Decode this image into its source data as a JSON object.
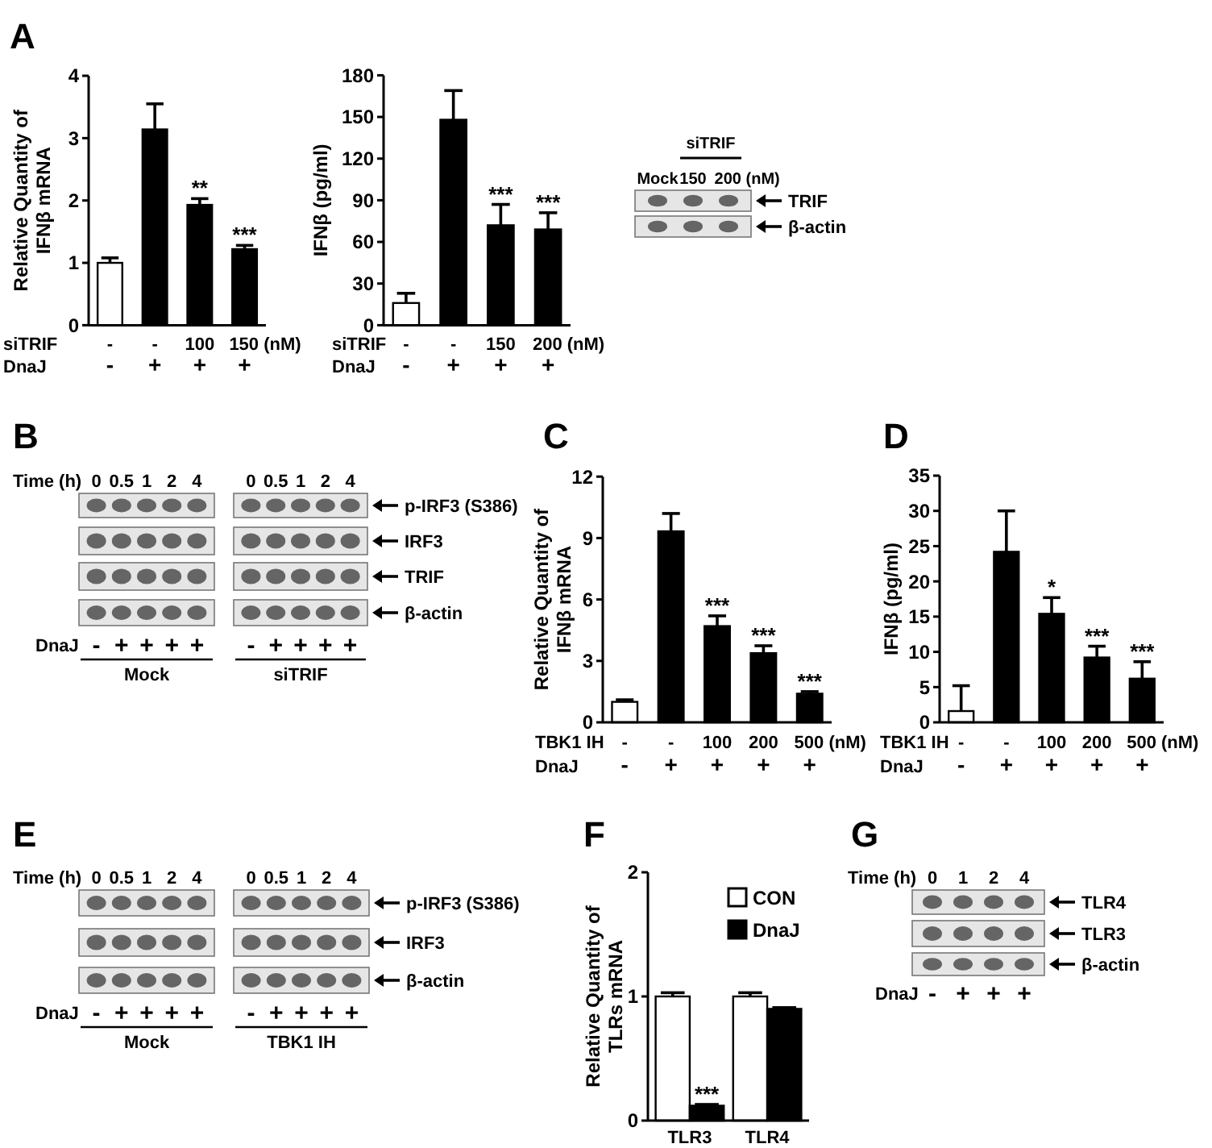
{
  "chart_data": [
    {
      "type": "bar",
      "title": "A",
      "ylabel": "Relative Quantity of\nIFNβ mRNA",
      "xlabel": "siTRIF\nDnaJ",
      "categories": [
        "-\n-",
        "-\n+",
        "100\n+",
        "150 (nM)\n+"
      ],
      "values": [
        1.0,
        3.14,
        1.93,
        1.22
      ],
      "colors": [
        "#ffffff",
        "#000000",
        "#000000",
        "#000000"
      ],
      "errors": [
        [
          1.0,
          1.08
        ],
        [
          3.14,
          3.55
        ],
        [
          1.93,
          2.03
        ],
        [
          1.22,
          1.28
        ]
      ],
      "ylim": [
        0,
        4
      ],
      "yticks": [
        0,
        1,
        2,
        3,
        4
      ],
      "annotations": [
        {
          "text": "**",
          "x": "100\n+",
          "y": 2.03
        },
        {
          "text": "***",
          "x": "150 (nM)\n+",
          "y": 1.28
        }
      ]
    },
    {
      "type": "bar",
      "ylabel": "IFNβ (pg/ml)",
      "xlabel": "siTRIF\nDnaJ",
      "categories": [
        "-\n-",
        "-\n+",
        "150\n+",
        "200 (nM)\n+"
      ],
      "values": [
        16,
        148,
        72,
        69
      ],
      "colors": [
        "#ffffff",
        "#000000",
        "#000000",
        "#000000"
      ],
      "errors": [
        [
          16,
          23
        ],
        [
          148,
          169
        ],
        [
          72,
          87
        ],
        [
          69,
          81
        ]
      ],
      "ylim": [
        0,
        180
      ],
      "yticks": [
        0,
        30,
        60,
        90,
        120,
        150,
        180
      ],
      "annotations": [
        {
          "text": "***",
          "x": "150\n+",
          "y": 87
        },
        {
          "text": "***",
          "x": "200 (nM)\n+",
          "y": 81
        }
      ]
    },
    {
      "type": "other",
      "annotations": [
        "siTRIF",
        "Mock",
        "150",
        "200 (nM)",
        "TRIF",
        "β-actin"
      ]
    },
    {
      "type": "other",
      "title": "B",
      "annotations": [
        "Time (h)",
        "0",
        "0.5",
        "1",
        "2",
        "4",
        "0",
        "0.5",
        "1",
        "2",
        "4",
        "p-IRF3 (S386)",
        "IRF3",
        "TRIF",
        "β-actin",
        "DnaJ",
        "-",
        "+",
        "+",
        "+",
        "+",
        "-",
        "+",
        "+",
        "+",
        "+",
        "Mock",
        "siTRIF"
      ]
    },
    {
      "type": "bar",
      "title": "C",
      "ylabel": "Relative Quantity of\nIFNβ mRNA",
      "xlabel": "TBK1 IH\nDnaJ",
      "categories": [
        "-\n-",
        "-\n+",
        "100\n+",
        "200\n+",
        "500 (nM)\n+"
      ],
      "values": [
        1.0,
        9.33,
        4.7,
        3.38,
        1.4
      ],
      "colors": [
        "#ffffff",
        "#000000",
        "#000000",
        "#000000",
        "#000000"
      ],
      "errors": [
        [
          1.0,
          1.1
        ],
        [
          9.33,
          10.2
        ],
        [
          4.7,
          5.2
        ],
        [
          3.38,
          3.74
        ],
        [
          1.4,
          1.5
        ]
      ],
      "ylim": [
        0,
        12
      ],
      "yticks": [
        0,
        3,
        6,
        9,
        12
      ],
      "annotations": [
        {
          "text": "***",
          "x": "100\n+",
          "y": 5.2
        },
        {
          "text": "***",
          "x": "200\n+",
          "y": 3.74
        },
        {
          "text": "***",
          "x": "500 (nM)\n+",
          "y": 1.5
        }
      ]
    },
    {
      "type": "bar",
      "title": "D",
      "ylabel": "IFNβ (pg/ml)",
      "xlabel": "TBK1 IH\nDnaJ",
      "categories": [
        "-\n-",
        "-\n+",
        "100\n+",
        "200\n+",
        "500 (nM)\n+"
      ],
      "values": [
        1.6,
        24.2,
        15.4,
        9.2,
        6.2
      ],
      "colors": [
        "#ffffff",
        "#000000",
        "#000000",
        "#000000",
        "#000000"
      ],
      "errors": [
        [
          1.6,
          5.2
        ],
        [
          24.2,
          30
        ],
        [
          15.4,
          17.7
        ],
        [
          9.2,
          10.8
        ],
        [
          6.2,
          8.6
        ]
      ],
      "ylim": [
        0,
        35
      ],
      "yticks": [
        0,
        5,
        10,
        15,
        20,
        25,
        30,
        35
      ],
      "annotations": [
        {
          "text": "*",
          "x": "100\n+",
          "y": 17.7
        },
        {
          "text": "***",
          "x": "200\n+",
          "y": 10.8
        },
        {
          "text": "***",
          "x": "500 (nM)\n+",
          "y": 8.6
        }
      ]
    },
    {
      "type": "other",
      "title": "E",
      "annotations": [
        "Time (h)",
        "0",
        "0.5",
        "1",
        "2",
        "4",
        "0",
        "0.5",
        "1",
        "2",
        "4",
        "p-IRF3 (S386)",
        "IRF3",
        "β-actin",
        "DnaJ",
        "-",
        "+",
        "+",
        "+",
        "+",
        "-",
        "+",
        "+",
        "+",
        "+",
        "Mock",
        "TBK1 IH"
      ]
    },
    {
      "type": "bar",
      "title": "F",
      "ylabel": "Relative Quantity of\nTLRs mRNA",
      "categories": [
        "TLR3",
        "TLR4"
      ],
      "series": [
        {
          "name": "CON",
          "color": "#ffffff",
          "values": [
            1.0,
            1.0
          ],
          "errors": [
            [
              1.0,
              1.03
            ],
            [
              1.0,
              1.03
            ]
          ]
        },
        {
          "name": "DnaJ",
          "color": "#000000",
          "values": [
            0.12,
            0.9
          ],
          "errors": [
            [
              0.12,
              0.13
            ],
            [
              0.9,
              0.91
            ]
          ]
        }
      ],
      "ylim": [
        0,
        2
      ],
      "yticks": [
        0,
        1,
        2
      ],
      "legend": "top right",
      "annotations": [
        {
          "text": "***",
          "x": "TLR3",
          "y": 0.13
        }
      ]
    },
    {
      "type": "other",
      "title": "G",
      "annotations": [
        "Time (h)",
        "0",
        "1",
        "2",
        "4",
        "TLR4",
        "TLR3",
        "β-actin",
        "DnaJ",
        "-",
        "+",
        "+",
        "+"
      ]
    }
  ]
}
